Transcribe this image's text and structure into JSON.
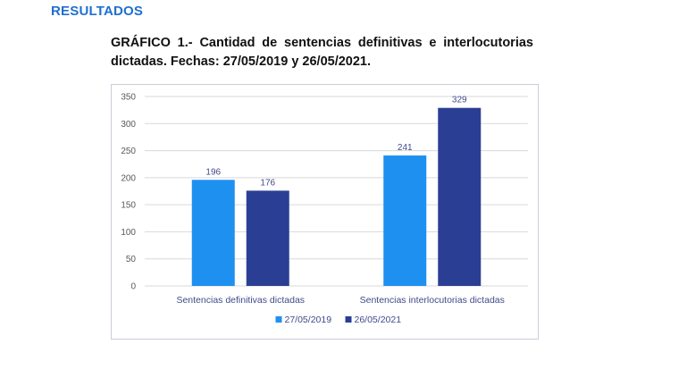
{
  "page": {
    "section_heading": "RESULTADOS",
    "figure_caption": "GRÁFICO 1.- Cantidad de sentencias definitivas e interlocutorias dictadas. Fechas: 27/05/2019 y 26/05/2021."
  },
  "colors": {
    "heading": "#1f6fd0",
    "series_2019": "#1e90f0",
    "series_2021": "#2a3f94",
    "grid": "#d9d9d9",
    "axis_text": "#595959",
    "label_text": "#404a8a"
  },
  "chart_data": {
    "type": "bar",
    "title": "",
    "xlabel": "",
    "ylabel": "",
    "categories": [
      "Sentencias definitivas dictadas",
      "Sentencias interlocutorias dictadas"
    ],
    "series": [
      {
        "name": "27/05/2019",
        "values": [
          196,
          241
        ]
      },
      {
        "name": "26/05/2021",
        "values": [
          176,
          329
        ]
      }
    ],
    "ylim": [
      0,
      350
    ],
    "yticks": [
      0,
      50,
      100,
      150,
      200,
      250,
      300,
      350
    ],
    "grid": true,
    "legend": "bottom",
    "data_labels": true
  }
}
